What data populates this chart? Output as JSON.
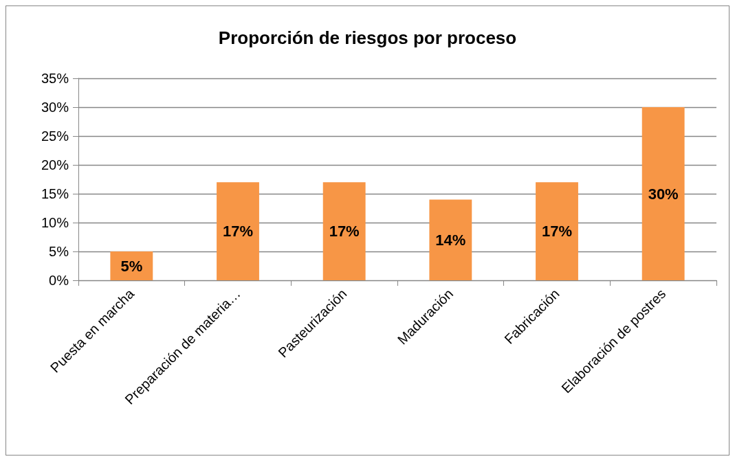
{
  "chart_data": {
    "type": "bar",
    "title": "Proporción de riesgos por proceso",
    "categories": [
      "Puesta en marcha",
      "Preparación de materia…",
      "Pasteurización",
      "Maduración",
      "Fabricación",
      "Elaboración de postres"
    ],
    "values": [
      5,
      17,
      17,
      14,
      17,
      30
    ],
    "value_labels": [
      "5%",
      "17%",
      "17%",
      "14%",
      "17%",
      "30%"
    ],
    "color": "#f79646",
    "ylim": [
      0,
      35
    ],
    "yticks": [
      {
        "value": 0,
        "label": "0%"
      },
      {
        "value": 5,
        "label": "5%"
      },
      {
        "value": 10,
        "label": "10%"
      },
      {
        "value": 15,
        "label": "15%"
      },
      {
        "value": 20,
        "label": "20%"
      },
      {
        "value": 25,
        "label": "25%"
      },
      {
        "value": 30,
        "label": "30%"
      },
      {
        "value": 35,
        "label": "35%"
      }
    ],
    "grid": "y"
  }
}
